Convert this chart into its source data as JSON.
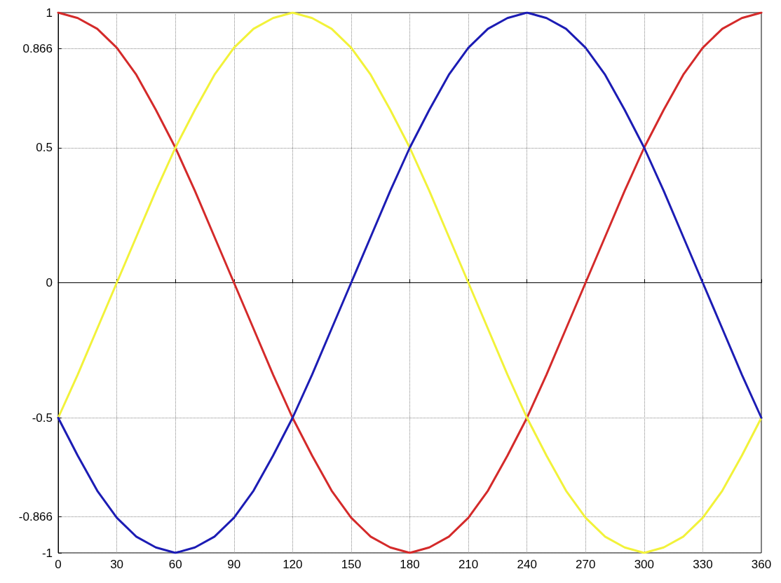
{
  "chart_data": {
    "type": "line",
    "x": [
      0,
      10,
      20,
      30,
      40,
      50,
      60,
      70,
      80,
      90,
      100,
      110,
      120,
      130,
      140,
      150,
      160,
      170,
      180,
      190,
      200,
      210,
      220,
      230,
      240,
      250,
      260,
      270,
      280,
      290,
      300,
      310,
      320,
      330,
      340,
      350,
      360
    ],
    "series": [
      {
        "color": "#d42a2a",
        "values": [
          1,
          0.98,
          0.94,
          0.87,
          0.77,
          0.64,
          0.5,
          0.34,
          0.17,
          0,
          -0.17,
          -0.34,
          -0.5,
          -0.64,
          -0.77,
          -0.87,
          -0.94,
          -0.98,
          -1,
          -0.98,
          -0.94,
          -0.87,
          -0.77,
          -0.64,
          -0.5,
          -0.34,
          -0.17,
          0,
          0.17,
          0.34,
          0.5,
          0.64,
          0.77,
          0.87,
          0.94,
          0.98,
          1
        ]
      },
      {
        "color": "#f2f23a",
        "values": [
          -0.5,
          -0.34,
          -0.17,
          0,
          0.17,
          0.34,
          0.5,
          0.64,
          0.77,
          0.87,
          0.94,
          0.98,
          1,
          0.98,
          0.94,
          0.87,
          0.77,
          0.64,
          0.5,
          0.34,
          0.17,
          0,
          -0.17,
          -0.34,
          -0.5,
          -0.64,
          -0.77,
          -0.87,
          -0.94,
          -0.98,
          -1,
          -0.98,
          -0.94,
          -0.87,
          -0.77,
          -0.64,
          -0.5
        ]
      },
      {
        "color": "#1c1cb4",
        "values": [
          -0.5,
          -0.64,
          -0.77,
          -0.87,
          -0.94,
          -0.98,
          -1,
          -0.98,
          -0.94,
          -0.87,
          -0.77,
          -0.64,
          -0.5,
          -0.34,
          -0.17,
          0,
          0.17,
          0.34,
          0.5,
          0.64,
          0.77,
          0.87,
          0.94,
          0.98,
          1,
          0.98,
          0.94,
          0.87,
          0.77,
          0.64,
          0.5,
          0.34,
          0.17,
          0,
          -0.17,
          -0.34,
          -0.5
        ]
      }
    ],
    "xlim": [
      0,
      360
    ],
    "xticks": [
      0,
      30,
      60,
      90,
      120,
      150,
      180,
      210,
      240,
      270,
      300,
      330,
      360
    ],
    "ylim": [
      -1,
      1
    ],
    "yticks": [
      -1,
      -0.866,
      -0.5,
      0,
      0.5,
      0.866,
      1
    ],
    "grid": true,
    "marker": "none",
    "line_style": "solid"
  }
}
